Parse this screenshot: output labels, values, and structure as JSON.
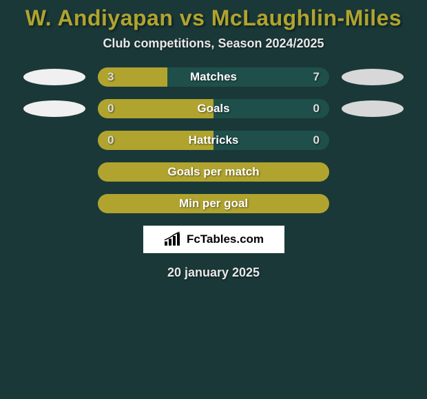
{
  "colors": {
    "title": "#b0a42f",
    "subtitle": "#e8e8e8",
    "bar_left": "#b0a42f",
    "bar_right": "#1f4f4a",
    "bar_text": "#ffffff",
    "value_text": "#dddddd",
    "avatar_left": "#f0f0f0",
    "avatar_right": "#d8d8d8",
    "background": "#1a3838",
    "logo_bg": "#ffffff",
    "logo_text": "#000000",
    "footer_text": "#e8e8e8"
  },
  "title": "W. Andiyapan vs McLaughlin-Miles",
  "subtitle": "Club competitions, Season 2024/2025",
  "stats": [
    {
      "label": "Matches",
      "left_val": "3",
      "right_val": "7",
      "left_pct": 30,
      "show_avatars": true
    },
    {
      "label": "Goals",
      "left_val": "0",
      "right_val": "0",
      "left_pct": 50,
      "show_avatars": true
    },
    {
      "label": "Hattricks",
      "left_val": "0",
      "right_val": "0",
      "left_pct": 50,
      "show_avatars": false
    }
  ],
  "derived": [
    {
      "label": "Goals per match"
    },
    {
      "label": "Min per goal"
    }
  ],
  "logo_text": "FcTables.com",
  "footer_date": "20 january 2025"
}
